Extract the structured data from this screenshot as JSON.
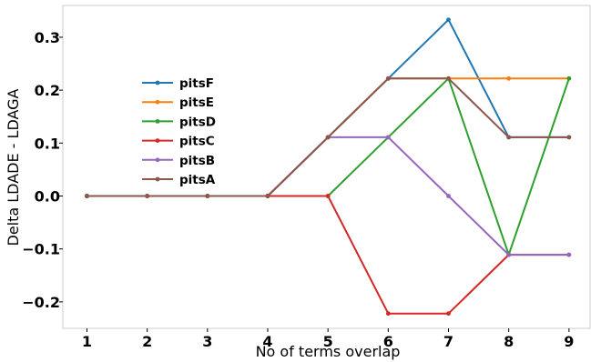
{
  "chart_data": {
    "type": "line",
    "title": "",
    "xlabel": "No of terms overlap",
    "ylabel": "Delta LDADE - LDAGA",
    "x": [
      1,
      2,
      3,
      4,
      5,
      6,
      7,
      8,
      9
    ],
    "xticks": [
      "1",
      "2",
      "3",
      "4",
      "5",
      "6",
      "7",
      "8",
      "9"
    ],
    "yticks": [
      -0.2,
      -0.1,
      0.0,
      0.1,
      0.2,
      0.3
    ],
    "ytick_labels": [
      "−0.2",
      "−0.1",
      "0.0",
      "0.1",
      "0.2",
      "0.3"
    ],
    "xlim": [
      0.6,
      9.35
    ],
    "ylim": [
      -0.25,
      0.36
    ],
    "grid": false,
    "legend_position": "upper-left",
    "series": [
      {
        "name": "pitsF",
        "color": "#1f77b4",
        "values": [
          0,
          0,
          0,
          0,
          0.111,
          0.222,
          0.333,
          0.111,
          0.111
        ]
      },
      {
        "name": "pitsE",
        "color": "#ff7f0e",
        "values": [
          0,
          0,
          0,
          0,
          0.111,
          0.222,
          0.222,
          0.222,
          0.222
        ]
      },
      {
        "name": "pitsD",
        "color": "#2ca02c",
        "values": [
          0,
          0,
          0,
          0,
          0,
          0.111,
          0.222,
          -0.111,
          0.222
        ]
      },
      {
        "name": "pitsC",
        "color": "#d62728",
        "values": [
          0,
          0,
          0,
          0,
          0,
          -0.222,
          -0.222,
          -0.111,
          -0.111
        ]
      },
      {
        "name": "pitsB",
        "color": "#9467bd",
        "values": [
          0,
          0,
          0,
          0,
          0.111,
          0.111,
          0,
          -0.111,
          -0.111
        ]
      },
      {
        "name": "pitsA",
        "color": "#8c564b",
        "values": [
          0,
          0,
          0,
          0,
          0.111,
          0.222,
          0.222,
          0.111,
          0.111
        ]
      }
    ]
  }
}
